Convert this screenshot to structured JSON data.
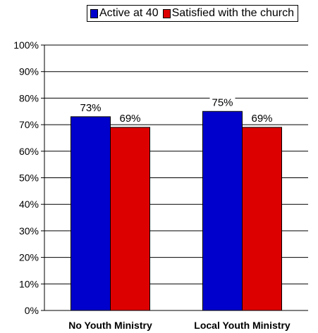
{
  "chart_data": {
    "type": "bar",
    "categories": [
      "No Youth Ministry",
      "Local Youth Ministry"
    ],
    "series": [
      {
        "name": "Active at 40",
        "values": [
          73,
          75
        ],
        "labels": [
          "73%",
          "75%"
        ],
        "color": "#0000cc"
      },
      {
        "name": "Satisfied with the church",
        "values": [
          69,
          69
        ],
        "labels": [
          "69%",
          "69%"
        ],
        "color": "#dd0000"
      }
    ],
    "ylim": [
      0,
      100
    ],
    "yticks": [
      "0%",
      "10%",
      "20%",
      "30%",
      "40%",
      "50%",
      "60%",
      "70%",
      "80%",
      "90%",
      "100%"
    ],
    "grid": true,
    "legend": "top"
  }
}
